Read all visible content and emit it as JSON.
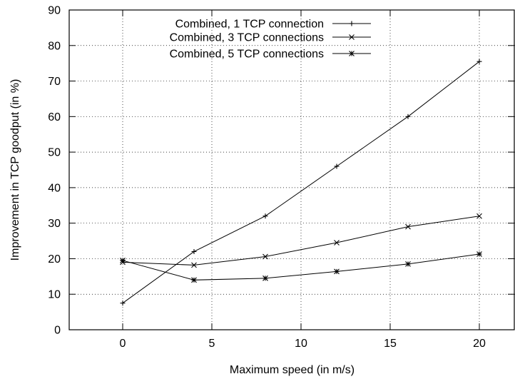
{
  "chart_data": {
    "type": "line",
    "title": "",
    "xlabel": "Maximum speed (in m/s)",
    "ylabel": "Improvement in TCP goodput (in %)",
    "xlim": [
      -3,
      22
    ],
    "ylim": [
      0,
      90
    ],
    "xticks": [
      0,
      5,
      10,
      15,
      20
    ],
    "yticks": [
      0,
      10,
      20,
      30,
      40,
      50,
      60,
      70,
      80,
      90
    ],
    "grid": true,
    "legend_position": "top-right",
    "series": [
      {
        "name": "Combined, 1 TCP connection",
        "marker": "plus",
        "x": [
          0,
          4,
          8,
          12,
          16,
          20
        ],
        "y": [
          7.5,
          22,
          32,
          46,
          60,
          75.5
        ]
      },
      {
        "name": "Combined, 3 TCP connections",
        "marker": "cross",
        "x": [
          0,
          4,
          8,
          12,
          16,
          20
        ],
        "y": [
          19,
          18.2,
          20.6,
          24.5,
          29,
          32
        ]
      },
      {
        "name": "Combined, 5 TCP connections",
        "marker": "star",
        "x": [
          0,
          4,
          8,
          12,
          16,
          20
        ],
        "y": [
          19.5,
          14,
          14.5,
          16.4,
          18.5,
          21.3
        ]
      }
    ]
  }
}
